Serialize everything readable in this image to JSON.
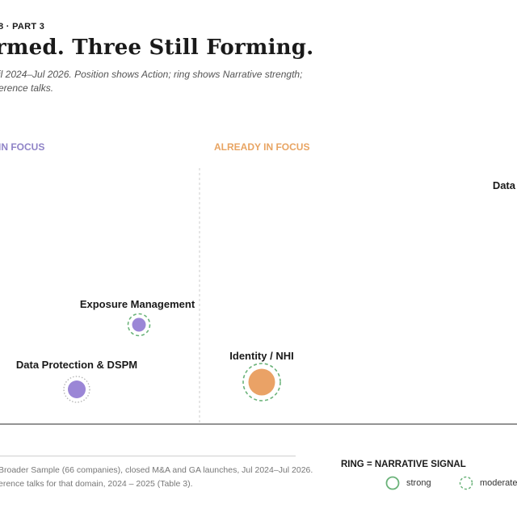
{
  "header": {
    "kicker": "8 · PART 3",
    "headline": "rmed. Three Still Forming.",
    "subtitle_line1": "il 2024–Jul 2026. Position shows Action; ring shows Narrative strength;",
    "subtitle_line2": "erence talks."
  },
  "zones": {
    "left": "IN FOCUS",
    "right": "ALREADY IN FOCUS"
  },
  "colors": {
    "purple": "#9b86d6",
    "orange": "#eaa266",
    "ring_green": "#6bb37a",
    "baseline": "#555555",
    "divider": "#cccccc"
  },
  "chart_data": {
    "type": "scatter",
    "points": [
      {
        "label": "Exposure Management",
        "color": "purple",
        "ring": "moderate"
      },
      {
        "label": "Data Protection & DSPM",
        "color": "purple",
        "ring": "weak"
      },
      {
        "label": "Identity / NHI",
        "color": "orange",
        "ring": "moderate"
      },
      {
        "label": "Data",
        "color": "orange",
        "ring": ""
      }
    ]
  },
  "footer": {
    "line1": "Broader Sample (66 companies), closed M&A and GA launches, Jul 2024–Jul 2026.",
    "line2": "erence talks for that domain, 2024 – 2025 (Table 3)."
  },
  "legend": {
    "title": "RING = NARRATIVE SIGNAL",
    "strong": "strong",
    "moderate": "moderate"
  }
}
